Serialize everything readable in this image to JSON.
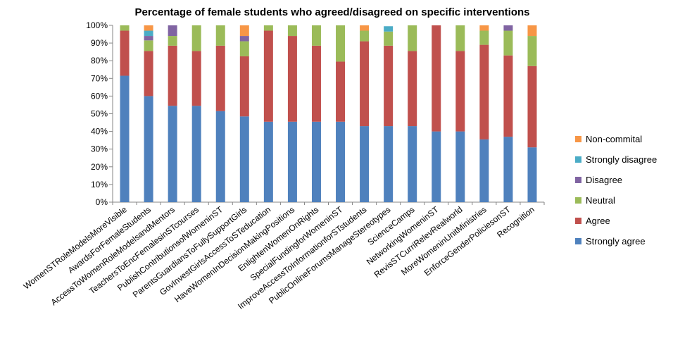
{
  "chart_data": {
    "type": "bar",
    "stacked": true,
    "title": "Percentage of female students who agreed/disagreed on specific interventions",
    "xlabel": "",
    "ylabel": "",
    "ylim": [
      0,
      100
    ],
    "ytick_values": [
      0,
      10,
      20,
      30,
      40,
      50,
      60,
      70,
      80,
      90,
      100
    ],
    "ytick_labels": [
      "0%",
      "10%",
      "20%",
      "30%",
      "40%",
      "50%",
      "60%",
      "70%",
      "80%",
      "90%",
      "100%"
    ],
    "grid": false,
    "legend_position": "right",
    "categories": [
      "WomenSTRoleModelsMoreVisible",
      "AwardsForFemaleStudents",
      "AccessToWomenRoleModelsandMentors",
      "TeachersToEncFemalesinSTcourses",
      "PublishContributionsofWomeninST",
      "ParentsGuardiansToFullySupportGirls",
      "GovInvestGirlsAccessToSTeducation",
      "HaveWomenInDecisionMakingPositions",
      "EnlightenWomenOnRights",
      "SpecialFundingforWomeninST",
      "ImproveAccessToInformationforSTstudents",
      "PublicOnlineForumsManageStereotypes",
      "ScienceCamps",
      "NetworkingWomeninST",
      "RevisSTCurriRelevRealworld",
      "MoreWomeninUnitMinistries",
      "EnforceGenderPoliciesonST",
      "Recognition"
    ],
    "series": [
      {
        "name": "Strongly agree",
        "color": "#4F81BD",
        "values": [
          71.5,
          60,
          54.5,
          54.5,
          51.5,
          48.5,
          45.5,
          45.5,
          45.5,
          45.5,
          43,
          43,
          43,
          40,
          40,
          35.5,
          37,
          31
        ]
      },
      {
        "name": "Agree",
        "color": "#C0504D",
        "values": [
          25.5,
          25.5,
          34,
          31,
          37,
          34,
          51.5,
          48.5,
          43,
          34,
          48,
          45.5,
          42.5,
          60,
          45.5,
          53.5,
          46,
          46
        ]
      },
      {
        "name": "Neutral",
        "color": "#9BBB59",
        "values": [
          3,
          6,
          5.5,
          14.5,
          11.5,
          8.5,
          3,
          6,
          11.5,
          20.5,
          6,
          8,
          14.5,
          0,
          14.5,
          8,
          14,
          17
        ]
      },
      {
        "name": "Disagree",
        "color": "#8064A2",
        "values": [
          0,
          2.5,
          6,
          0,
          0,
          3,
          0,
          0,
          0,
          0,
          0,
          0,
          0,
          0,
          0,
          0,
          3,
          0
        ]
      },
      {
        "name": "Strongly disagree",
        "color": "#4BACC6",
        "values": [
          0,
          3,
          0,
          0,
          0,
          0,
          0,
          0,
          0,
          0,
          0,
          3,
          0,
          0,
          0,
          0,
          0,
          0
        ]
      },
      {
        "name": "Non-commital",
        "color": "#F79646",
        "values": [
          0,
          3,
          0,
          0,
          0,
          6,
          0,
          0,
          0,
          0,
          3,
          0,
          0,
          0,
          0,
          3,
          0,
          6
        ]
      }
    ],
    "legend_order": [
      "Non-commital",
      "Strongly disagree",
      "Disagree",
      "Neutral",
      "Agree",
      "Strongly agree"
    ]
  }
}
